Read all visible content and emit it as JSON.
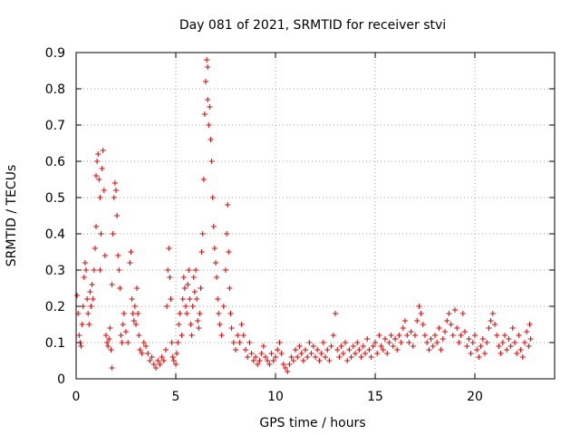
{
  "chart_data": {
    "type": "scatter",
    "title": "Day 081 of 2021, SRMTID for receiver stvi",
    "xlabel": "GPS time / hours",
    "ylabel": "SRMTID / TECUs",
    "xlim": [
      0,
      24
    ],
    "ylim": [
      0,
      0.9
    ],
    "xticks": [
      0,
      5,
      10,
      15,
      20
    ],
    "xtick_labels": [
      "0",
      "5",
      "10",
      "15",
      "20"
    ],
    "yticks": [
      0,
      0.1,
      0.2,
      0.3,
      0.4,
      0.5,
      0.6,
      0.7,
      0.8,
      0.9
    ],
    "ytick_labels": [
      "0",
      "0.1",
      "0.2",
      "0.3",
      "0.4",
      "0.5",
      "0.6",
      "0.7",
      "0.8",
      "0.9"
    ],
    "grid": true,
    "marker": "+",
    "color": "#e00000",
    "series": [
      {
        "name": "SRMTID",
        "points": [
          [
            0.05,
            0.23
          ],
          [
            0.1,
            0.18
          ],
          [
            0.15,
            0.12
          ],
          [
            0.2,
            0.1
          ],
          [
            0.25,
            0.09
          ],
          [
            0.3,
            0.15
          ],
          [
            0.35,
            0.2
          ],
          [
            0.4,
            0.28
          ],
          [
            0.45,
            0.32
          ],
          [
            0.5,
            0.3
          ],
          [
            0.55,
            0.22
          ],
          [
            0.6,
            0.18
          ],
          [
            0.65,
            0.15
          ],
          [
            0.7,
            0.24
          ],
          [
            0.75,
            0.2
          ],
          [
            0.8,
            0.26
          ],
          [
            0.85,
            0.22
          ],
          [
            0.9,
            0.3
          ],
          [
            0.95,
            0.36
          ],
          [
            1.0,
            0.42
          ],
          [
            1.0,
            0.56
          ],
          [
            1.05,
            0.6
          ],
          [
            1.1,
            0.62
          ],
          [
            1.15,
            0.55
          ],
          [
            1.2,
            0.5
          ],
          [
            1.2,
            0.3
          ],
          [
            1.25,
            0.4
          ],
          [
            1.3,
            0.58
          ],
          [
            1.35,
            0.63
          ],
          [
            1.4,
            0.52
          ],
          [
            1.45,
            0.34
          ],
          [
            1.5,
            0.12
          ],
          [
            1.55,
            0.1
          ],
          [
            1.6,
            0.09
          ],
          [
            1.65,
            0.11
          ],
          [
            1.7,
            0.14
          ],
          [
            1.75,
            0.08
          ],
          [
            1.8,
            0.03
          ],
          [
            1.8,
            0.26
          ],
          [
            1.85,
            0.4
          ],
          [
            1.9,
            0.5
          ],
          [
            1.95,
            0.54
          ],
          [
            2.0,
            0.52
          ],
          [
            2.05,
            0.45
          ],
          [
            2.1,
            0.34
          ],
          [
            2.15,
            0.3
          ],
          [
            2.2,
            0.25
          ],
          [
            2.25,
            0.12
          ],
          [
            2.3,
            0.1
          ],
          [
            2.35,
            0.15
          ],
          [
            2.4,
            0.18
          ],
          [
            2.5,
            0.13
          ],
          [
            2.6,
            0.1
          ],
          [
            2.7,
            0.32
          ],
          [
            2.75,
            0.35
          ],
          [
            2.8,
            0.22
          ],
          [
            2.85,
            0.18
          ],
          [
            2.9,
            0.16
          ],
          [
            2.95,
            0.2
          ],
          [
            3.0,
            0.15
          ],
          [
            3.05,
            0.25
          ],
          [
            3.1,
            0.18
          ],
          [
            3.15,
            0.12
          ],
          [
            3.2,
            0.08
          ],
          [
            3.3,
            0.07
          ],
          [
            3.4,
            0.1
          ],
          [
            3.5,
            0.09
          ],
          [
            3.6,
            0.07
          ],
          [
            3.7,
            0.05
          ],
          [
            3.8,
            0.06
          ],
          [
            3.9,
            0.04
          ],
          [
            4.0,
            0.03
          ],
          [
            4.1,
            0.05
          ],
          [
            4.2,
            0.04
          ],
          [
            4.3,
            0.06
          ],
          [
            4.4,
            0.05
          ],
          [
            4.5,
            0.08
          ],
          [
            4.55,
            0.2
          ],
          [
            4.6,
            0.3
          ],
          [
            4.65,
            0.36
          ],
          [
            4.7,
            0.28
          ],
          [
            4.75,
            0.22
          ],
          [
            4.8,
            0.1
          ],
          [
            4.85,
            0.06
          ],
          [
            4.9,
            0.05
          ],
          [
            5.0,
            0.04
          ],
          [
            5.05,
            0.07
          ],
          [
            5.1,
            0.1
          ],
          [
            5.15,
            0.15
          ],
          [
            5.2,
            0.18
          ],
          [
            5.3,
            0.12
          ],
          [
            5.35,
            0.22
          ],
          [
            5.4,
            0.28
          ],
          [
            5.45,
            0.25
          ],
          [
            5.5,
            0.2
          ],
          [
            5.55,
            0.18
          ],
          [
            5.6,
            0.26
          ],
          [
            5.65,
            0.3
          ],
          [
            5.7,
            0.22
          ],
          [
            5.75,
            0.15
          ],
          [
            5.8,
            0.12
          ],
          [
            5.85,
            0.2
          ],
          [
            5.9,
            0.28
          ],
          [
            5.95,
            0.24
          ],
          [
            6.0,
            0.3
          ],
          [
            6.05,
            0.22
          ],
          [
            6.1,
            0.16
          ],
          [
            6.15,
            0.14
          ],
          [
            6.2,
            0.18
          ],
          [
            6.25,
            0.25
          ],
          [
            6.3,
            0.35
          ],
          [
            6.35,
            0.4
          ],
          [
            6.4,
            0.55
          ],
          [
            6.45,
            0.73
          ],
          [
            6.5,
            0.82
          ],
          [
            6.55,
            0.88
          ],
          [
            6.6,
            0.86
          ],
          [
            6.6,
            0.77
          ],
          [
            6.65,
            0.7
          ],
          [
            6.7,
            0.75
          ],
          [
            6.75,
            0.66
          ],
          [
            6.8,
            0.6
          ],
          [
            6.85,
            0.5
          ],
          [
            6.9,
            0.42
          ],
          [
            6.95,
            0.36
          ],
          [
            7.0,
            0.32
          ],
          [
            7.05,
            0.28
          ],
          [
            7.1,
            0.22
          ],
          [
            7.15,
            0.18
          ],
          [
            7.2,
            0.15
          ],
          [
            7.3,
            0.12
          ],
          [
            7.4,
            0.2
          ],
          [
            7.5,
            0.3
          ],
          [
            7.55,
            0.4
          ],
          [
            7.6,
            0.48
          ],
          [
            7.65,
            0.35
          ],
          [
            7.7,
            0.25
          ],
          [
            7.75,
            0.18
          ],
          [
            7.8,
            0.14
          ],
          [
            7.9,
            0.1
          ],
          [
            8.0,
            0.08
          ],
          [
            8.1,
            0.12
          ],
          [
            8.2,
            0.1
          ],
          [
            8.3,
            0.15
          ],
          [
            8.4,
            0.12
          ],
          [
            8.5,
            0.08
          ],
          [
            8.6,
            0.06
          ],
          [
            8.7,
            0.1
          ],
          [
            8.8,
            0.07
          ],
          [
            8.9,
            0.05
          ],
          [
            9.0,
            0.06
          ],
          [
            9.1,
            0.04
          ],
          [
            9.2,
            0.05
          ],
          [
            9.3,
            0.07
          ],
          [
            9.4,
            0.09
          ],
          [
            9.5,
            0.06
          ],
          [
            9.6,
            0.05
          ],
          [
            9.7,
            0.04
          ],
          [
            9.8,
            0.07
          ],
          [
            9.9,
            0.05
          ],
          [
            10.0,
            0.06
          ],
          [
            10.1,
            0.08
          ],
          [
            10.2,
            0.1
          ],
          [
            10.3,
            0.07
          ],
          [
            10.4,
            0.04
          ],
          [
            10.5,
            0.03
          ],
          [
            10.6,
            0.02
          ],
          [
            10.7,
            0.04
          ],
          [
            10.8,
            0.06
          ],
          [
            10.9,
            0.05
          ],
          [
            11.0,
            0.08
          ],
          [
            11.1,
            0.06
          ],
          [
            11.2,
            0.09
          ],
          [
            11.3,
            0.07
          ],
          [
            11.4,
            0.05
          ],
          [
            11.5,
            0.08
          ],
          [
            11.6,
            0.06
          ],
          [
            11.7,
            0.1
          ],
          [
            11.8,
            0.07
          ],
          [
            11.9,
            0.09
          ],
          [
            12.0,
            0.06
          ],
          [
            12.1,
            0.08
          ],
          [
            12.2,
            0.05
          ],
          [
            12.3,
            0.07
          ],
          [
            12.4,
            0.1
          ],
          [
            12.5,
            0.06
          ],
          [
            12.6,
            0.08
          ],
          [
            12.7,
            0.05
          ],
          [
            12.8,
            0.09
          ],
          [
            12.9,
            0.12
          ],
          [
            13.0,
            0.18
          ],
          [
            13.1,
            0.08
          ],
          [
            13.2,
            0.06
          ],
          [
            13.3,
            0.09
          ],
          [
            13.4,
            0.07
          ],
          [
            13.5,
            0.1
          ],
          [
            13.6,
            0.05
          ],
          [
            13.7,
            0.08
          ],
          [
            13.8,
            0.06
          ],
          [
            13.9,
            0.09
          ],
          [
            14.0,
            0.07
          ],
          [
            14.1,
            0.1
          ],
          [
            14.2,
            0.08
          ],
          [
            14.3,
            0.06
          ],
          [
            14.4,
            0.09
          ],
          [
            14.5,
            0.07
          ],
          [
            14.6,
            0.11
          ],
          [
            14.7,
            0.08
          ],
          [
            14.8,
            0.06
          ],
          [
            14.9,
            0.09
          ],
          [
            15.0,
            0.1
          ],
          [
            15.1,
            0.07
          ],
          [
            15.2,
            0.12
          ],
          [
            15.3,
            0.09
          ],
          [
            15.4,
            0.08
          ],
          [
            15.5,
            0.11
          ],
          [
            15.6,
            0.07
          ],
          [
            15.7,
            0.1
          ],
          [
            15.8,
            0.12
          ],
          [
            15.9,
            0.09
          ],
          [
            16.0,
            0.11
          ],
          [
            16.1,
            0.08
          ],
          [
            16.2,
            0.12
          ],
          [
            16.3,
            0.1
          ],
          [
            16.4,
            0.14
          ],
          [
            16.5,
            0.16
          ],
          [
            16.6,
            0.12
          ],
          [
            16.7,
            0.1
          ],
          [
            16.8,
            0.13
          ],
          [
            16.9,
            0.09
          ],
          [
            17.0,
            0.12
          ],
          [
            17.1,
            0.16
          ],
          [
            17.2,
            0.2
          ],
          [
            17.3,
            0.18
          ],
          [
            17.4,
            0.15
          ],
          [
            17.5,
            0.12
          ],
          [
            17.6,
            0.1
          ],
          [
            17.7,
            0.08
          ],
          [
            17.8,
            0.11
          ],
          [
            17.9,
            0.09
          ],
          [
            18.0,
            0.12
          ],
          [
            18.1,
            0.1
          ],
          [
            18.2,
            0.14
          ],
          [
            18.3,
            0.08
          ],
          [
            18.4,
            0.11
          ],
          [
            18.5,
            0.13
          ],
          [
            18.6,
            0.16
          ],
          [
            18.7,
            0.18
          ],
          [
            18.8,
            0.15
          ],
          [
            18.9,
            0.12
          ],
          [
            19.0,
            0.19
          ],
          [
            19.1,
            0.14
          ],
          [
            19.2,
            0.1
          ],
          [
            19.3,
            0.12
          ],
          [
            19.4,
            0.18
          ],
          [
            19.5,
            0.13
          ],
          [
            19.6,
            0.09
          ],
          [
            19.7,
            0.11
          ],
          [
            19.8,
            0.07
          ],
          [
            19.9,
            0.1
          ],
          [
            20.0,
            0.12
          ],
          [
            20.1,
            0.08
          ],
          [
            20.2,
            0.06
          ],
          [
            20.3,
            0.09
          ],
          [
            20.4,
            0.11
          ],
          [
            20.5,
            0.07
          ],
          [
            20.6,
            0.1
          ],
          [
            20.7,
            0.14
          ],
          [
            20.8,
            0.16
          ],
          [
            20.9,
            0.18
          ],
          [
            21.0,
            0.15
          ],
          [
            21.1,
            0.12
          ],
          [
            21.2,
            0.09
          ],
          [
            21.3,
            0.07
          ],
          [
            21.4,
            0.1
          ],
          [
            21.5,
            0.12
          ],
          [
            21.6,
            0.08
          ],
          [
            21.7,
            0.11
          ],
          [
            21.8,
            0.09
          ],
          [
            21.9,
            0.14
          ],
          [
            22.0,
            0.1
          ],
          [
            22.1,
            0.07
          ],
          [
            22.2,
            0.12
          ],
          [
            22.3,
            0.08
          ],
          [
            22.4,
            0.06
          ],
          [
            22.5,
            0.1
          ],
          [
            22.6,
            0.13
          ],
          [
            22.7,
            0.09
          ],
          [
            22.75,
            0.15
          ],
          [
            22.8,
            0.11
          ]
        ]
      }
    ]
  }
}
